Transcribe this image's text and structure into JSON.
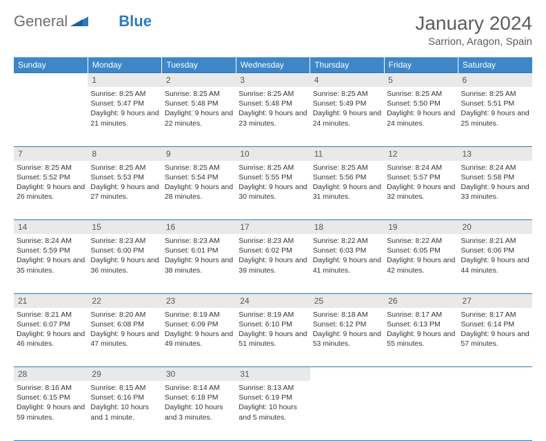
{
  "logo": {
    "text1": "General",
    "text2": "Blue"
  },
  "title": "January 2024",
  "location": "Sarrion, Aragon, Spain",
  "colors": {
    "header_bg": "#3d87c9",
    "border": "#2a7abf",
    "daynum_bg": "#e9e9e9",
    "text": "#333333",
    "title_color": "#5c5c5c"
  },
  "weekdays": [
    "Sunday",
    "Monday",
    "Tuesday",
    "Wednesday",
    "Thursday",
    "Friday",
    "Saturday"
  ],
  "first_weekday_index": 1,
  "days_in_month": 31,
  "days": {
    "1": {
      "sunrise": "8:25 AM",
      "sunset": "5:47 PM",
      "daylight": "9 hours and 21 minutes."
    },
    "2": {
      "sunrise": "8:25 AM",
      "sunset": "5:48 PM",
      "daylight": "9 hours and 22 minutes."
    },
    "3": {
      "sunrise": "8:25 AM",
      "sunset": "5:48 PM",
      "daylight": "9 hours and 23 minutes."
    },
    "4": {
      "sunrise": "8:25 AM",
      "sunset": "5:49 PM",
      "daylight": "9 hours and 24 minutes."
    },
    "5": {
      "sunrise": "8:25 AM",
      "sunset": "5:50 PM",
      "daylight": "9 hours and 24 minutes."
    },
    "6": {
      "sunrise": "8:25 AM",
      "sunset": "5:51 PM",
      "daylight": "9 hours and 25 minutes."
    },
    "7": {
      "sunrise": "8:25 AM",
      "sunset": "5:52 PM",
      "daylight": "9 hours and 26 minutes."
    },
    "8": {
      "sunrise": "8:25 AM",
      "sunset": "5:53 PM",
      "daylight": "9 hours and 27 minutes."
    },
    "9": {
      "sunrise": "8:25 AM",
      "sunset": "5:54 PM",
      "daylight": "9 hours and 28 minutes."
    },
    "10": {
      "sunrise": "8:25 AM",
      "sunset": "5:55 PM",
      "daylight": "9 hours and 30 minutes."
    },
    "11": {
      "sunrise": "8:25 AM",
      "sunset": "5:56 PM",
      "daylight": "9 hours and 31 minutes."
    },
    "12": {
      "sunrise": "8:24 AM",
      "sunset": "5:57 PM",
      "daylight": "9 hours and 32 minutes."
    },
    "13": {
      "sunrise": "8:24 AM",
      "sunset": "5:58 PM",
      "daylight": "9 hours and 33 minutes."
    },
    "14": {
      "sunrise": "8:24 AM",
      "sunset": "5:59 PM",
      "daylight": "9 hours and 35 minutes."
    },
    "15": {
      "sunrise": "8:23 AM",
      "sunset": "6:00 PM",
      "daylight": "9 hours and 36 minutes."
    },
    "16": {
      "sunrise": "8:23 AM",
      "sunset": "6:01 PM",
      "daylight": "9 hours and 38 minutes."
    },
    "17": {
      "sunrise": "8:23 AM",
      "sunset": "6:02 PM",
      "daylight": "9 hours and 39 minutes."
    },
    "18": {
      "sunrise": "8:22 AM",
      "sunset": "6:03 PM",
      "daylight": "9 hours and 41 minutes."
    },
    "19": {
      "sunrise": "8:22 AM",
      "sunset": "6:05 PM",
      "daylight": "9 hours and 42 minutes."
    },
    "20": {
      "sunrise": "8:21 AM",
      "sunset": "6:06 PM",
      "daylight": "9 hours and 44 minutes."
    },
    "21": {
      "sunrise": "8:21 AM",
      "sunset": "6:07 PM",
      "daylight": "9 hours and 46 minutes."
    },
    "22": {
      "sunrise": "8:20 AM",
      "sunset": "6:08 PM",
      "daylight": "9 hours and 47 minutes."
    },
    "23": {
      "sunrise": "8:19 AM",
      "sunset": "6:09 PM",
      "daylight": "9 hours and 49 minutes."
    },
    "24": {
      "sunrise": "8:19 AM",
      "sunset": "6:10 PM",
      "daylight": "9 hours and 51 minutes."
    },
    "25": {
      "sunrise": "8:18 AM",
      "sunset": "6:12 PM",
      "daylight": "9 hours and 53 minutes."
    },
    "26": {
      "sunrise": "8:17 AM",
      "sunset": "6:13 PM",
      "daylight": "9 hours and 55 minutes."
    },
    "27": {
      "sunrise": "8:17 AM",
      "sunset": "6:14 PM",
      "daylight": "9 hours and 57 minutes."
    },
    "28": {
      "sunrise": "8:16 AM",
      "sunset": "6:15 PM",
      "daylight": "9 hours and 59 minutes."
    },
    "29": {
      "sunrise": "8:15 AM",
      "sunset": "6:16 PM",
      "daylight": "10 hours and 1 minute."
    },
    "30": {
      "sunrise": "8:14 AM",
      "sunset": "6:18 PM",
      "daylight": "10 hours and 3 minutes."
    },
    "31": {
      "sunrise": "8:13 AM",
      "sunset": "6:19 PM",
      "daylight": "10 hours and 5 minutes."
    }
  },
  "labels": {
    "sunrise": "Sunrise:",
    "sunset": "Sunset:",
    "daylight": "Daylight:"
  }
}
